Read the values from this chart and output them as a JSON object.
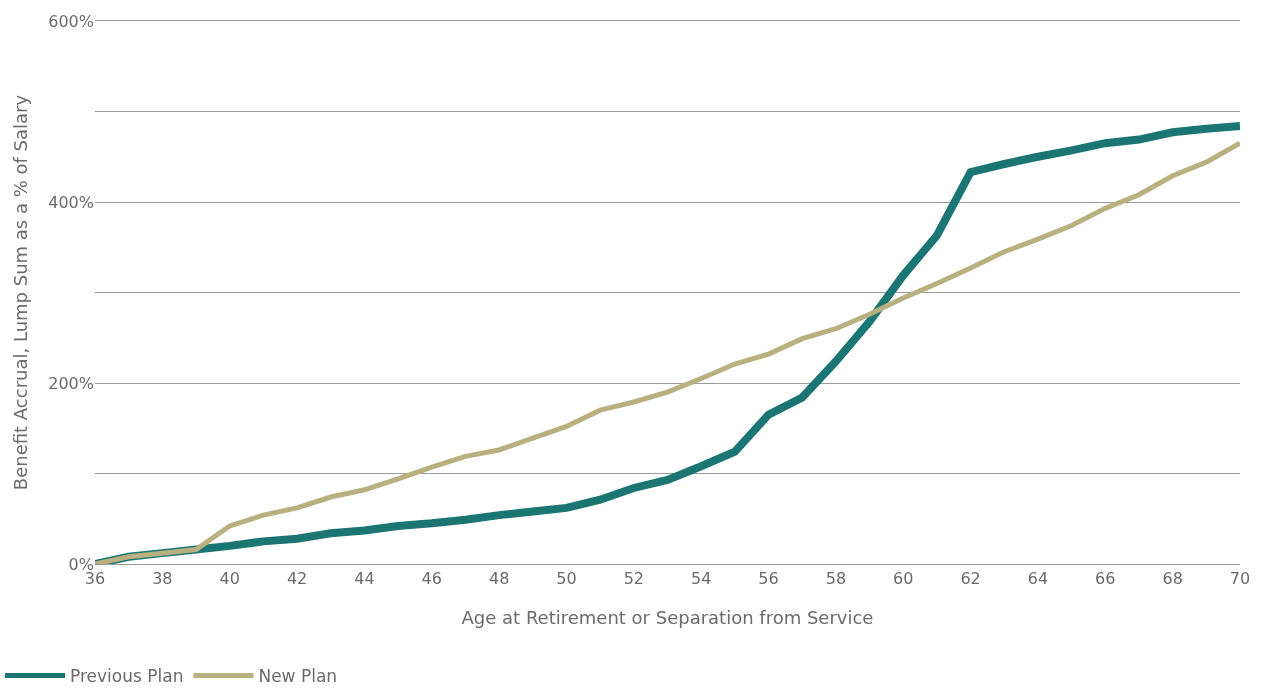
{
  "chart_data": {
    "type": "line",
    "xlabel": "Age at Retirement or Separation from Service",
    "ylabel": "Benefit Accrual, Lump Sum as a % of Salary",
    "x": [
      36,
      37,
      38,
      39,
      40,
      41,
      42,
      43,
      44,
      45,
      46,
      47,
      48,
      49,
      50,
      51,
      52,
      53,
      54,
      55,
      56,
      57,
      58,
      59,
      60,
      61,
      62,
      63,
      64,
      65,
      66,
      67,
      68,
      69,
      70
    ],
    "series": [
      {
        "name": "Previous Plan",
        "color": "#1b7673",
        "values": [
          0,
          8,
          12,
          16,
          20,
          25,
          28,
          34,
          37,
          42,
          45,
          49,
          54,
          58,
          62,
          71,
          84,
          93,
          108,
          124,
          165,
          184,
          224,
          268,
          319,
          363,
          433,
          442,
          450,
          457,
          465,
          469,
          477,
          481,
          484
        ]
      },
      {
        "name": "New Plan",
        "color": "#b8b07f",
        "values": [
          0,
          8,
          12,
          16,
          42,
          54,
          62,
          74,
          82,
          94,
          107,
          119,
          126,
          139,
          152,
          170,
          179,
          190,
          205,
          221,
          232,
          249,
          260,
          276,
          294,
          310,
          327,
          345,
          359,
          374,
          393,
          408,
          429,
          444,
          465
        ]
      }
    ],
    "xlim": [
      36,
      70
    ],
    "xticks": [
      36,
      38,
      40,
      42,
      44,
      46,
      48,
      50,
      52,
      54,
      56,
      58,
      60,
      62,
      64,
      66,
      68,
      70
    ],
    "ylim": [
      0,
      600
    ],
    "yticks": [
      {
        "value": 0,
        "label": "0%"
      },
      {
        "value": 100,
        "label": null
      },
      {
        "value": 200,
        "label": "200%"
      },
      {
        "value": 300,
        "label": null
      },
      {
        "value": 400,
        "label": "400%"
      },
      {
        "value": 500,
        "label": null
      },
      {
        "value": 600,
        "label": "600%"
      }
    ],
    "grid": "y",
    "legend": "bottom left",
    "marker": "none",
    "line_style": "solid"
  }
}
